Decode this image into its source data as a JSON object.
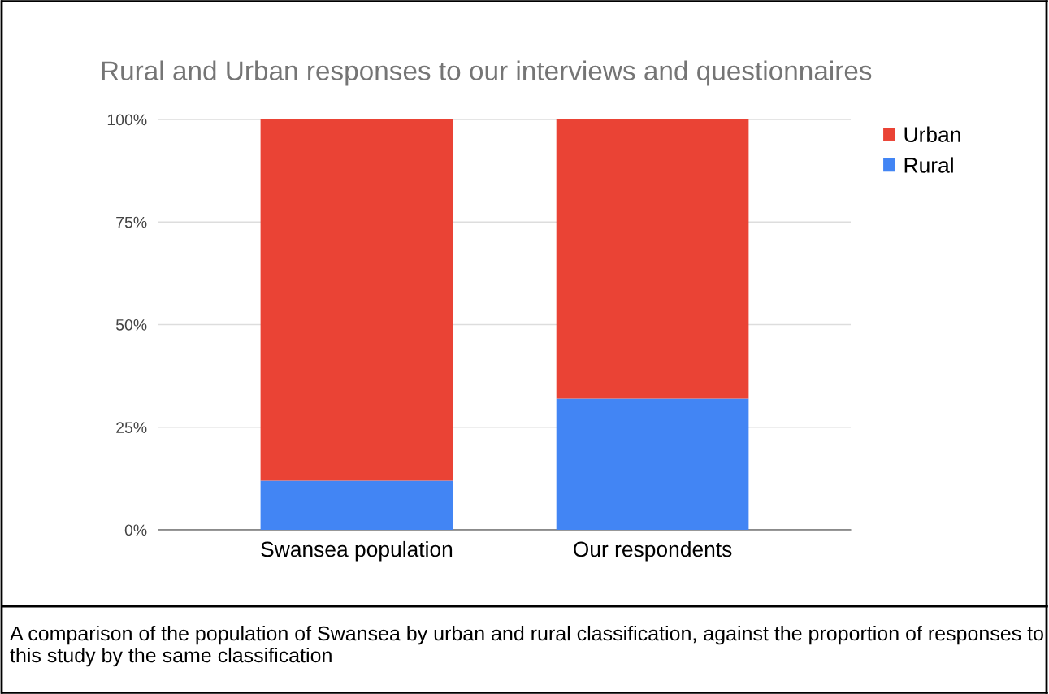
{
  "chart_data": {
    "type": "bar",
    "title": "Rural and Urban responses to our interviews and questionnaires",
    "categories": [
      "Swansea population",
      "Our respondents"
    ],
    "stacked": true,
    "series": [
      {
        "name": "Rural",
        "color": "#4285f4",
        "values": [
          12,
          32
        ]
      },
      {
        "name": "Urban",
        "color": "#ea4335",
        "values": [
          88,
          68
        ]
      }
    ],
    "ylim": [
      0,
      100
    ],
    "yticks": [
      {
        "value": 0,
        "label": "0%"
      },
      {
        "value": 25,
        "label": "25%"
      },
      {
        "value": 50,
        "label": "50%"
      },
      {
        "value": 75,
        "label": "75%"
      },
      {
        "value": 100,
        "label": "100%"
      }
    ],
    "grid": "y",
    "legend": "top right",
    "annotations": [
      "A comparison of the population of Swansea by urban and rural classification, against the proportion of responses to this study by the same classification"
    ]
  }
}
